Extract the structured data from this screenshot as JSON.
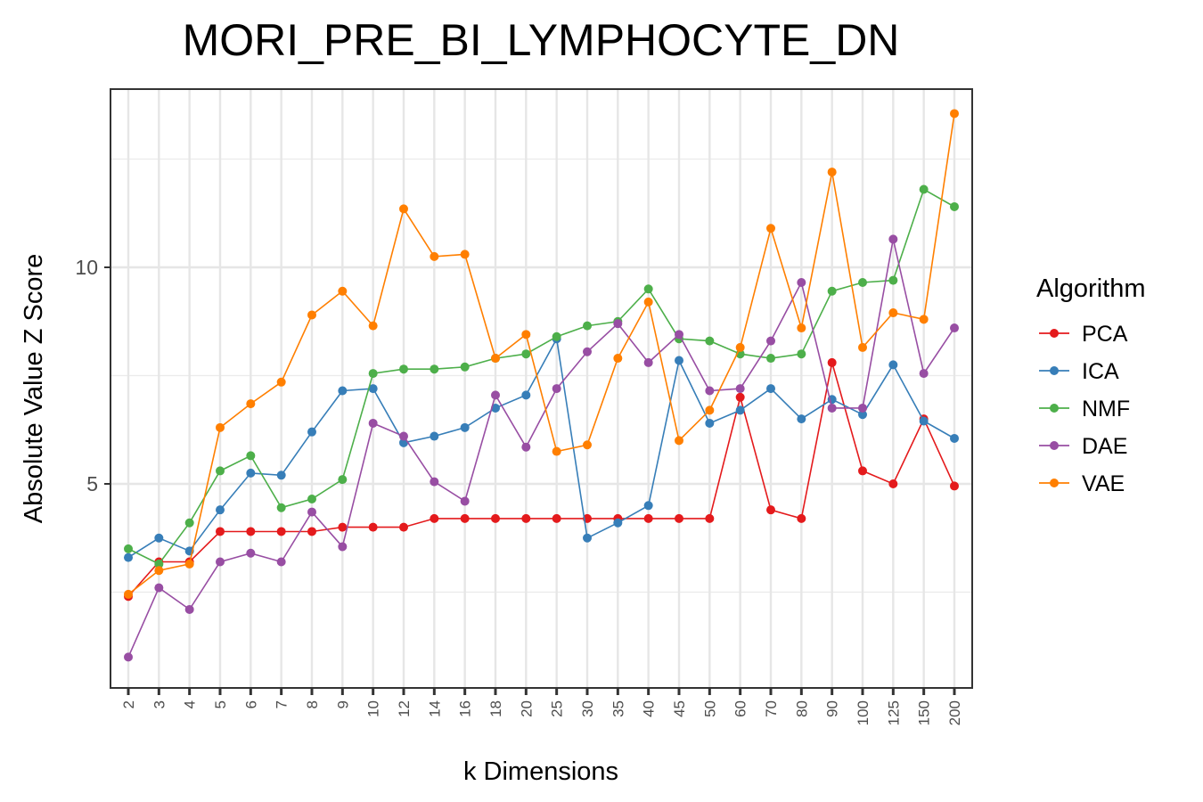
{
  "chart_data": {
    "type": "line",
    "title": "MORI_PRE_BI_LYMPHOCYTE_DN",
    "xlabel": "k Dimensions",
    "ylabel": "Absolute Value Z Score",
    "categories": [
      "2",
      "3",
      "4",
      "5",
      "6",
      "7",
      "8",
      "9",
      "10",
      "12",
      "14",
      "16",
      "18",
      "20",
      "25",
      "30",
      "35",
      "40",
      "45",
      "50",
      "60",
      "70",
      "80",
      "90",
      "100",
      "125",
      "150",
      "200"
    ],
    "yticks": [
      5,
      10
    ],
    "ylim": [
      0.5,
      14.2
    ],
    "grid": true,
    "legend": {
      "title": "Algorithm",
      "position": "right"
    },
    "series": [
      {
        "name": "PCA",
        "color": "#e41a1c",
        "values": [
          2.4,
          3.2,
          3.2,
          3.9,
          3.9,
          3.9,
          3.9,
          4.0,
          4.0,
          4.0,
          4.2,
          4.2,
          4.2,
          4.2,
          4.2,
          4.2,
          4.2,
          4.2,
          4.2,
          4.2,
          7.0,
          4.4,
          4.2,
          7.8,
          5.3,
          5.0,
          6.5,
          4.95
        ]
      },
      {
        "name": "ICA",
        "color": "#377eb8",
        "values": [
          3.3,
          3.75,
          3.45,
          4.4,
          5.25,
          5.2,
          6.2,
          7.15,
          7.2,
          5.95,
          6.1,
          6.3,
          6.75,
          7.05,
          8.35,
          3.75,
          4.1,
          4.5,
          7.85,
          6.4,
          6.7,
          7.2,
          6.5,
          6.95,
          6.6,
          7.75,
          6.45,
          6.05
        ]
      },
      {
        "name": "NMF",
        "color": "#4daf4a",
        "values": [
          3.5,
          3.15,
          4.1,
          5.3,
          5.65,
          4.45,
          4.65,
          5.1,
          7.55,
          7.65,
          7.65,
          7.7,
          7.9,
          8.0,
          8.4,
          8.65,
          8.75,
          9.5,
          8.35,
          8.3,
          8.0,
          7.9,
          8.0,
          9.45,
          9.65,
          9.7,
          11.8,
          11.4
        ]
      },
      {
        "name": "DAE",
        "color": "#984ea3",
        "values": [
          1.0,
          2.6,
          2.1,
          3.2,
          3.4,
          3.2,
          4.35,
          3.55,
          6.4,
          6.1,
          5.05,
          4.6,
          7.05,
          5.85,
          7.2,
          8.05,
          8.7,
          7.8,
          8.45,
          7.15,
          7.2,
          8.3,
          9.65,
          6.75,
          6.75,
          10.65,
          7.55,
          8.6
        ]
      },
      {
        "name": "VAE",
        "color": "#ff7f00",
        "values": [
          2.45,
          3.0,
          3.15,
          6.3,
          6.85,
          7.35,
          8.9,
          9.45,
          8.65,
          11.35,
          10.25,
          10.3,
          7.9,
          8.45,
          5.75,
          5.9,
          7.9,
          9.2,
          6.0,
          6.7,
          8.15,
          10.9,
          8.6,
          12.2,
          8.15,
          8.95,
          8.8,
          13.55
        ]
      }
    ]
  }
}
